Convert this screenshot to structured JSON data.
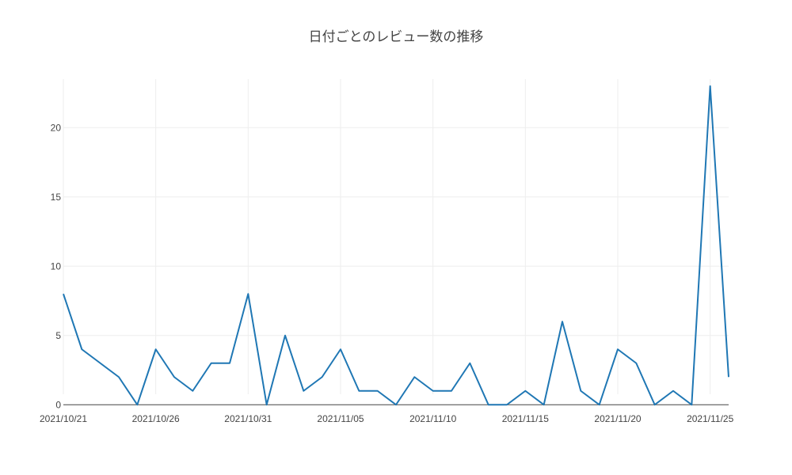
{
  "chart_data": {
    "type": "line",
    "title": "日付ごとのレビュー数の推移",
    "xlabel": "",
    "ylabel": "",
    "x": [
      "2021/10/21",
      "2021/10/22",
      "2021/10/23",
      "2021/10/24",
      "2021/10/25",
      "2021/10/26",
      "2021/10/27",
      "2021/10/28",
      "2021/10/29",
      "2021/10/30",
      "2021/10/31",
      "2021/11/01",
      "2021/11/02",
      "2021/11/03",
      "2021/11/04",
      "2021/11/05",
      "2021/11/06",
      "2021/11/07",
      "2021/11/08",
      "2021/11/09",
      "2021/11/10",
      "2021/11/11",
      "2021/11/12",
      "2021/11/13",
      "2021/11/14",
      "2021/11/15",
      "2021/11/16",
      "2021/11/17",
      "2021/11/18",
      "2021/11/19",
      "2021/11/20",
      "2021/11/21",
      "2021/11/22",
      "2021/11/23",
      "2021/11/24",
      "2021/11/25",
      "2021/11/26"
    ],
    "series": [
      {
        "values": [
          8,
          4,
          3,
          2,
          0,
          4,
          2,
          1,
          3,
          3,
          8,
          0,
          5,
          1,
          2,
          4,
          1,
          1,
          0,
          2,
          1,
          1,
          3,
          0,
          0,
          1,
          0,
          6,
          1,
          0,
          4,
          3,
          0,
          1,
          0,
          23,
          2
        ]
      }
    ],
    "x_ticks": [
      "2021/10/21",
      "2021/10/26",
      "2021/10/31",
      "2021/11/05",
      "2021/11/10",
      "2021/11/15",
      "2021/11/20",
      "2021/11/25"
    ],
    "y_ticks": [
      0,
      5,
      10,
      15,
      20
    ],
    "ylim": [
      -0.5,
      23.5
    ],
    "grid": true,
    "line_color": "#1f77b4"
  }
}
